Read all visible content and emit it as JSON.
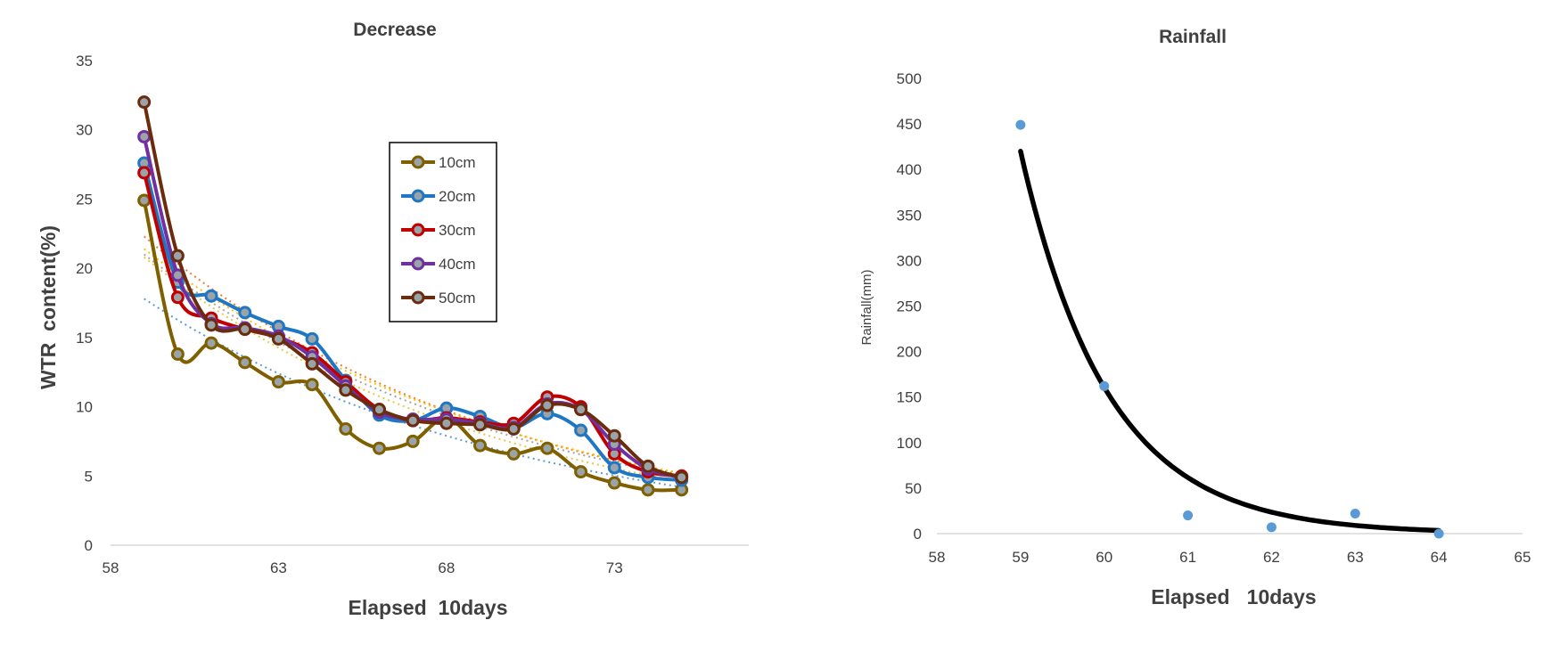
{
  "chart_data": [
    {
      "type": "line",
      "title": "Decrease",
      "xlabel": "Elapsed  10days",
      "ylabel": "WTR  content(%)",
      "xlim": [
        58,
        77
      ],
      "ylim": [
        0,
        35
      ],
      "x_ticks": [
        58,
        63,
        68,
        73
      ],
      "y_ticks": [
        0,
        5,
        10,
        15,
        20,
        25,
        30,
        35
      ],
      "grid": false,
      "legend_position": "center-inside",
      "x": [
        59,
        60,
        61,
        62,
        63,
        64,
        65,
        66,
        67,
        68,
        69,
        70,
        71,
        72,
        73,
        74,
        75
      ],
      "series": [
        {
          "name": "10cm",
          "color": "#7f6000",
          "values": [
            24.9,
            13.8,
            14.6,
            13.2,
            11.8,
            11.6,
            8.4,
            7.0,
            7.5,
            9.2,
            7.2,
            6.6,
            7.0,
            5.3,
            4.5,
            4.0,
            4.0
          ],
          "trend_color": "#e8c74a",
          "trend_start": 20.8,
          "trend_end": 4.6
        },
        {
          "name": "20cm",
          "color": "#1f77c4",
          "values": [
            27.6,
            19.0,
            18.0,
            16.8,
            15.8,
            14.9,
            11.9,
            9.4,
            9.0,
            9.9,
            9.3,
            8.5,
            9.5,
            8.3,
            5.6,
            4.9,
            4.7
          ],
          "trend_color": "#5b9bd5",
          "trend_start": 17.8,
          "trend_end": 4.2
        },
        {
          "name": "30cm",
          "color": "#c00000",
          "values": [
            26.9,
            17.9,
            16.4,
            15.6,
            15.0,
            13.9,
            11.8,
            9.8,
            9.0,
            9.2,
            8.9,
            8.8,
            10.7,
            10.0,
            6.6,
            5.3,
            5.0
          ],
          "trend_color": "#ed7d31",
          "trend_start": 22.3,
          "trend_end": 5.1
        },
        {
          "name": "40cm",
          "color": "#7030a0",
          "values": [
            29.5,
            19.5,
            16.0,
            15.7,
            15.1,
            13.6,
            11.5,
            9.6,
            9.1,
            9.1,
            8.8,
            8.5,
            10.2,
            9.8,
            7.3,
            5.5,
            4.9
          ],
          "trend_color": "#ffc000",
          "trend_start": 21.4,
          "trend_end": 5.2
        },
        {
          "name": "50cm",
          "color": "#6b2c0d",
          "values": [
            32.0,
            20.9,
            15.9,
            15.6,
            14.9,
            13.1,
            11.2,
            9.8,
            9.0,
            8.8,
            8.7,
            8.4,
            10.1,
            9.8,
            7.9,
            5.7,
            4.9
          ],
          "trend_color": "#a5a5a5",
          "trend_start": 21.0,
          "trend_end": 5.0
        }
      ]
    },
    {
      "type": "scatter",
      "title": "Rainfall",
      "xlabel": "Elapsed   10days",
      "ylabel": "Rainfall(mm)",
      "xlim": [
        58,
        65
      ],
      "ylim": [
        0,
        500
      ],
      "x_ticks": [
        58,
        59,
        60,
        61,
        62,
        63,
        64,
        65
      ],
      "y_ticks": [
        0,
        50,
        100,
        150,
        200,
        250,
        300,
        350,
        400,
        450,
        500
      ],
      "grid": false,
      "points_color": "#5b9bd5",
      "points": [
        {
          "x": 59,
          "y": 449
        },
        {
          "x": 60,
          "y": 162
        },
        {
          "x": 61,
          "y": 20
        },
        {
          "x": 62,
          "y": 7
        },
        {
          "x": 63,
          "y": 22
        },
        {
          "x": 64,
          "y": 0
        }
      ],
      "trendline": {
        "type": "exponential",
        "color": "#000000",
        "x_start": 59,
        "x_end": 64,
        "y_start": 420,
        "decay_per_unit": 0.96
      }
    }
  ]
}
